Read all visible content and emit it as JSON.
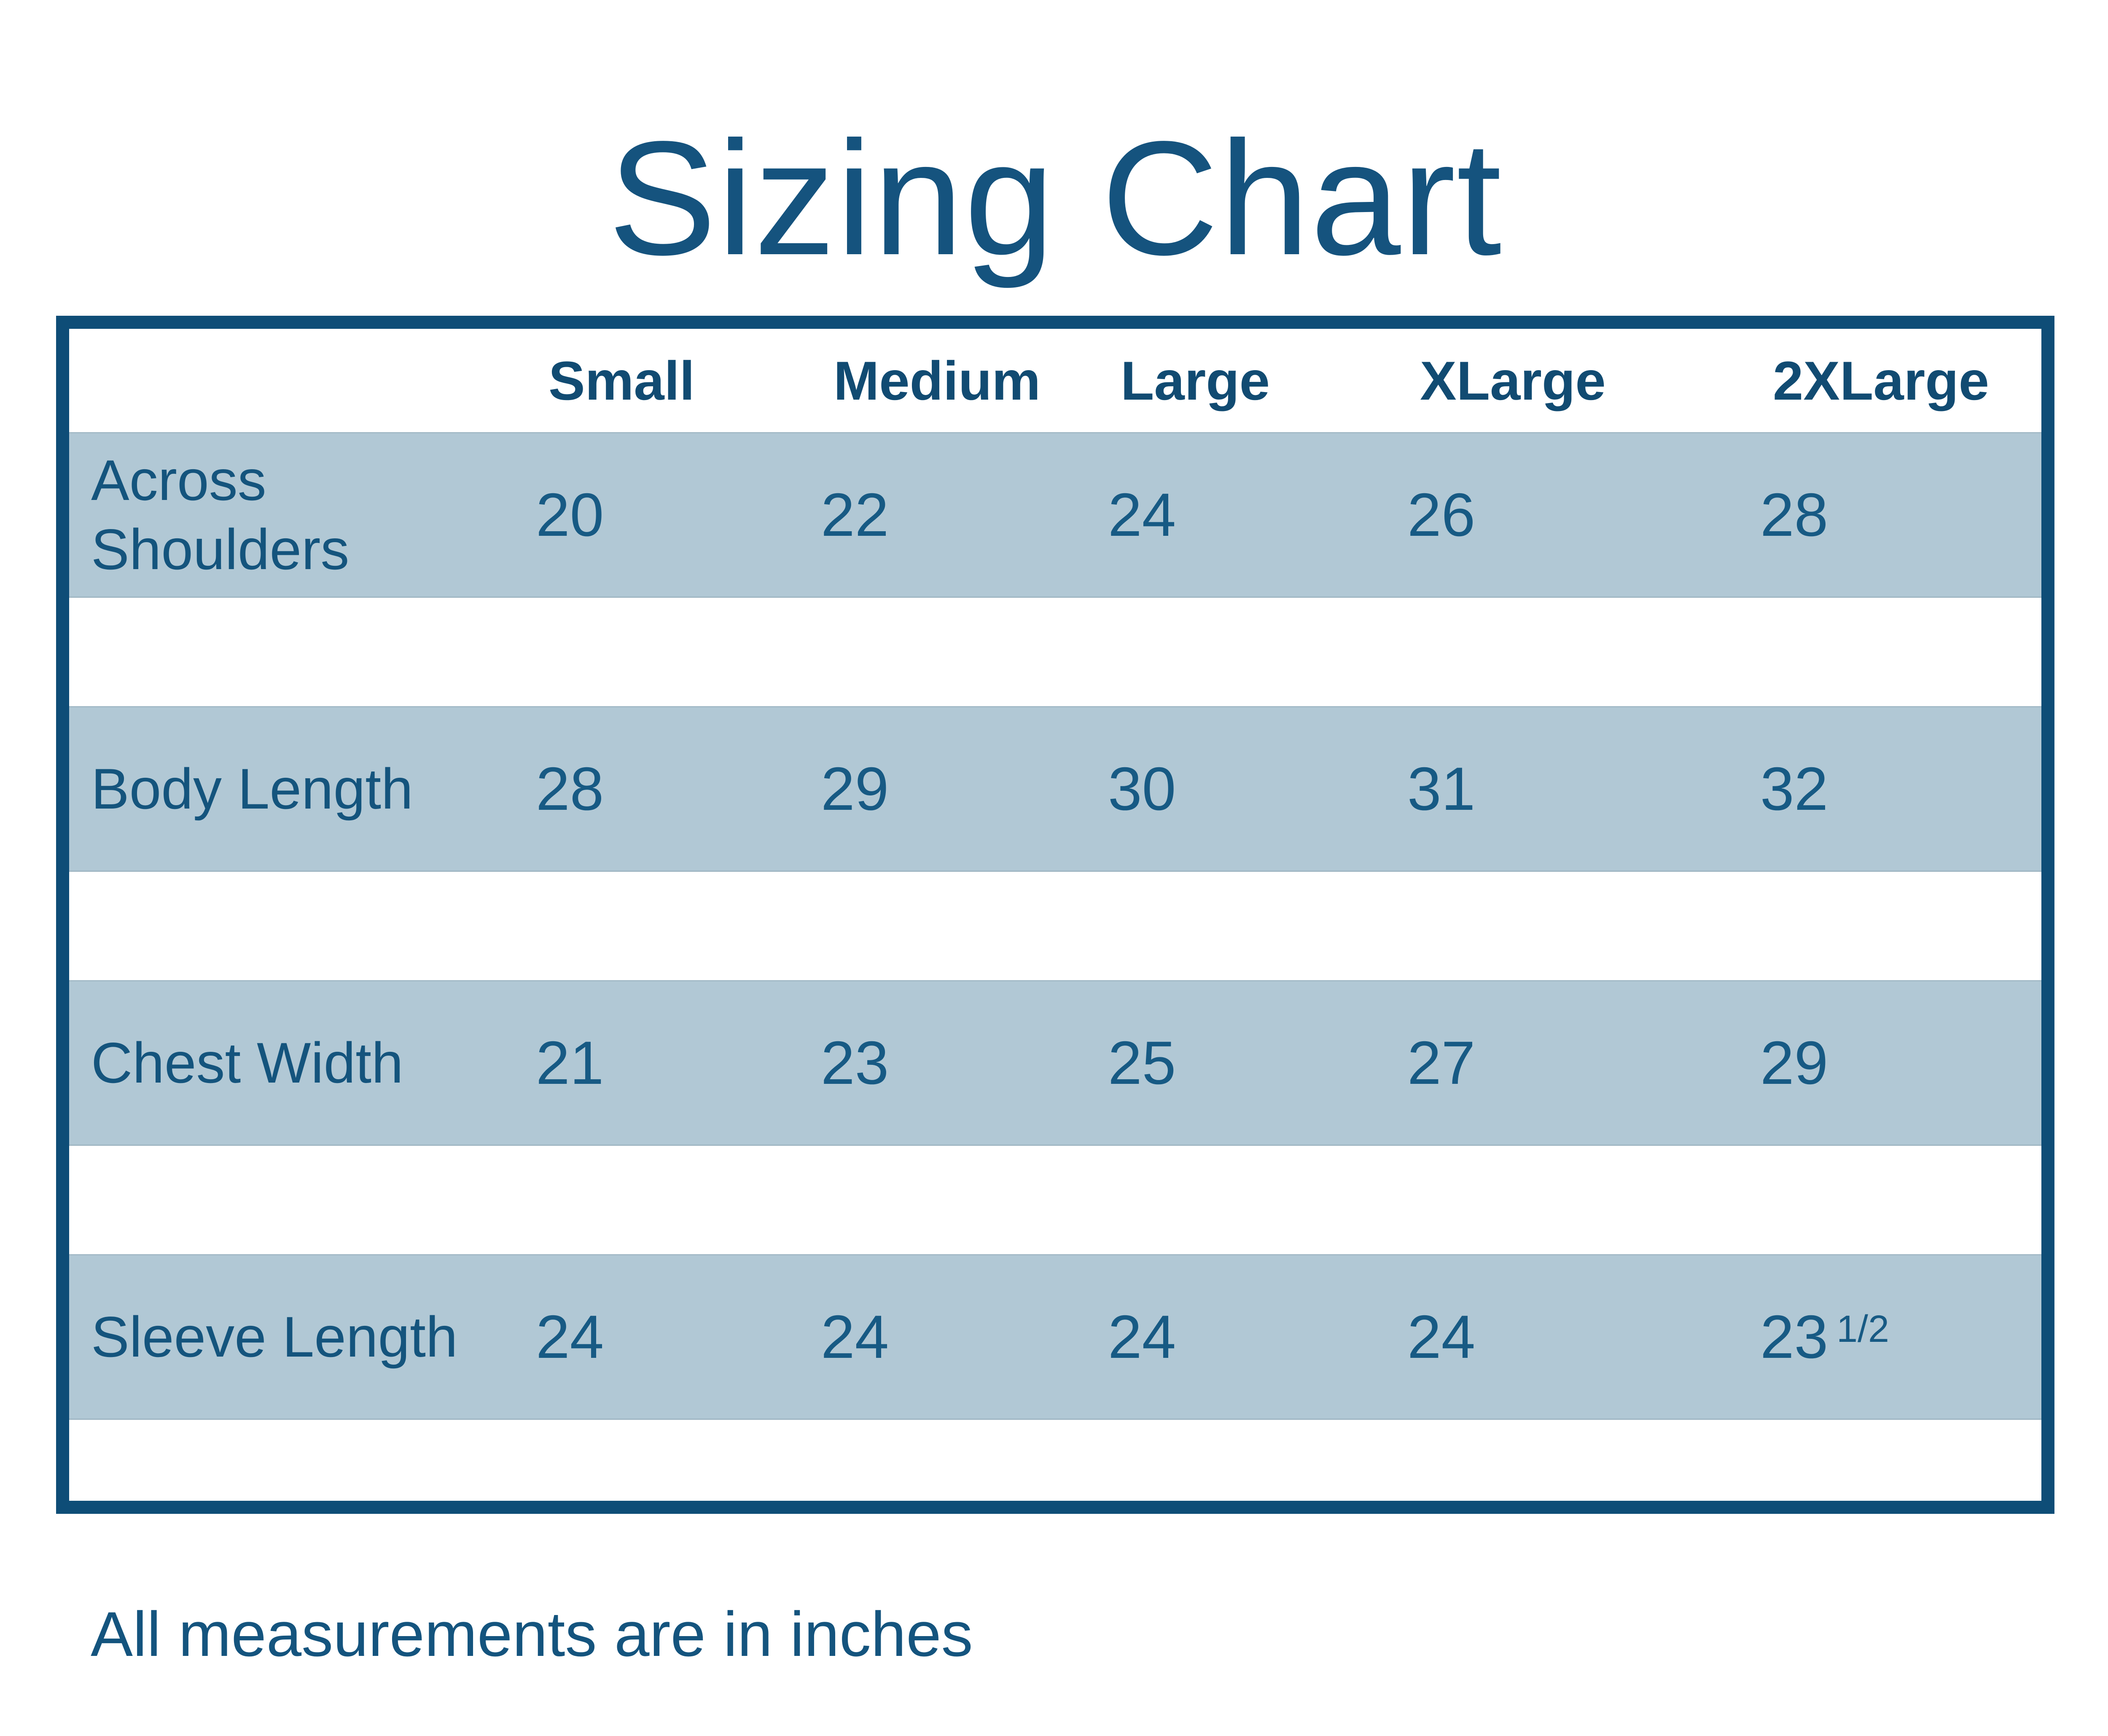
{
  "title": "Sizing Chart",
  "table": {
    "columns": [
      "Small",
      "Medium",
      "Large",
      "XLarge",
      "2XLarge"
    ],
    "rows": [
      {
        "label": "Across Shoulders",
        "values": [
          "20",
          "22",
          "24",
          "26",
          "28"
        ]
      },
      {
        "label": "Body Length",
        "values": [
          "28",
          "29",
          "30",
          "31",
          "32"
        ]
      },
      {
        "label": "Chest Width",
        "values": [
          "21",
          "23",
          "25",
          "27",
          "29"
        ]
      },
      {
        "label": "Sleeve Length",
        "values": [
          "24",
          "24",
          "24",
          "24",
          "23"
        ],
        "fraction": "1/2"
      }
    ]
  },
  "footer": {
    "note": "All measurements are in inches"
  },
  "colors": {
    "frame_blue": "#0e4d77",
    "band_blue": "#b1c8d5",
    "title_blue": "#15537e",
    "header_text": "#114b72",
    "value_text": "#175a84"
  },
  "chart_data": {
    "type": "table",
    "title": "Sizing Chart",
    "columns": [
      "Small",
      "Medium",
      "Large",
      "XLarge",
      "2XLarge"
    ],
    "rows": [
      {
        "label": "Across Shoulders",
        "values": [
          20,
          22,
          24,
          26,
          28
        ]
      },
      {
        "label": "Body Length",
        "values": [
          28,
          29,
          30,
          31,
          32
        ]
      },
      {
        "label": "Chest Width",
        "values": [
          21,
          23,
          25,
          27,
          29
        ]
      },
      {
        "label": "Sleeve Length",
        "values": [
          24,
          24,
          24,
          24,
          23.5
        ]
      }
    ],
    "note": "All measurements are in inches",
    "legend_position": "none",
    "grid": false
  }
}
